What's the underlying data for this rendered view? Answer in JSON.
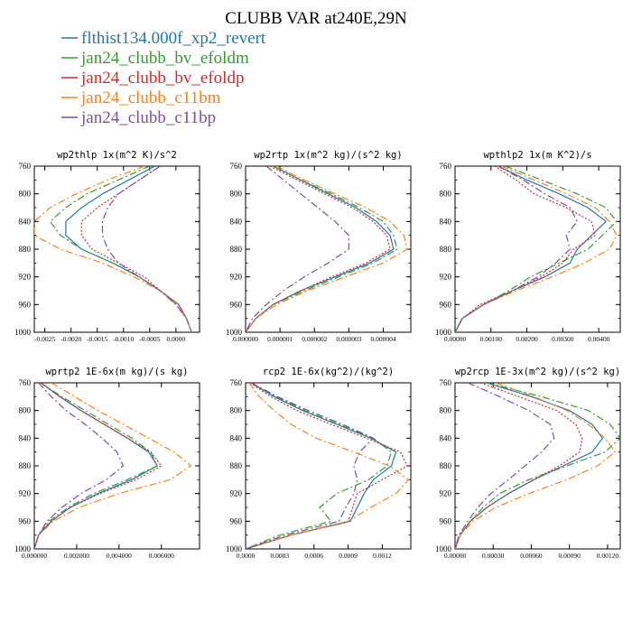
{
  "page_title": "CLUBB VAR at240E,29N",
  "legend": [
    {
      "label": "flthist134.000f_xp2_revert",
      "color": "#1f77b4",
      "dash": ""
    },
    {
      "label": "jan24_clubb_bv_efoldm",
      "color": "#2ca02c",
      "dash": "8,3,2,3"
    },
    {
      "label": "jan24_clubb_bv_efoldp",
      "color": "#d62728",
      "dash": "2,2"
    },
    {
      "label": "jan24_clubb_c11bm",
      "color": "#ff7f0e",
      "dash": "8,3,2,3"
    },
    {
      "label": "jan24_clubb_c11bp",
      "color": "#7b4ea3",
      "dash": "8,3,2,3"
    }
  ],
  "chart_data": [
    {
      "type": "line",
      "title": "wp2thlp  1x(m^2 K)/s^2",
      "ylim": [
        760,
        1000
      ],
      "yticks": [
        "760",
        "800",
        "840",
        "880",
        "920",
        "960",
        "1000"
      ],
      "xlim": [
        -0.0027,
        0.00045
      ],
      "xtick_values": [
        -0.0025,
        -0.002,
        -0.0015,
        -0.001,
        -0.0005,
        0.0
      ],
      "xtick_labels": [
        "-0.0025",
        "-0.0020",
        "-0.0015",
        "-0.0010",
        "-0.0005",
        "0.0000"
      ],
      "y": [
        760,
        780,
        800,
        820,
        840,
        860,
        880,
        900,
        920,
        940,
        960,
        980,
        1000
      ],
      "series": [
        {
          "name": "flthist134.000f_xp2_revert",
          "values": [
            -0.0004,
            -0.0009,
            -0.0014,
            -0.0018,
            -0.0021,
            -0.0021,
            -0.0018,
            -0.0012,
            -0.0007,
            -0.0003,
            5e-05,
            0.0002,
            0.0003
          ]
        },
        {
          "name": "jan24_clubb_bv_efoldm",
          "values": [
            -0.0005,
            -0.0011,
            -0.0017,
            -0.0021,
            -0.0024,
            -0.0022,
            -0.0018,
            -0.0012,
            -0.0007,
            -0.0003,
            5e-05,
            0.0002,
            0.0003
          ]
        },
        {
          "name": "jan24_clubb_bv_efoldp",
          "values": [
            -0.0003,
            -0.0007,
            -0.0011,
            -0.0015,
            -0.0018,
            -0.0018,
            -0.0016,
            -0.0011,
            -0.0006,
            -0.0003,
            5e-05,
            0.0002,
            0.0003
          ]
        },
        {
          "name": "jan24_clubb_c11bm",
          "values": [
            -0.0006,
            -0.0013,
            -0.0019,
            -0.0024,
            -0.0027,
            -0.0027,
            -0.0022,
            -0.0014,
            -0.0008,
            -0.0003,
            0.0,
            0.0002,
            0.0003
          ]
        },
        {
          "name": "jan24_clubb_c11bp",
          "values": [
            -0.0003,
            -0.0007,
            -0.0011,
            -0.0013,
            -0.0014,
            -0.0014,
            -0.0013,
            -0.0011,
            -0.0007,
            -0.0003,
            0.0,
            0.0002,
            0.0003
          ]
        }
      ]
    },
    {
      "type": "line",
      "title": "wp2rtp  1x(m^2 kg)/(s^2 kg)",
      "ylim": [
        760,
        1000
      ],
      "yticks": [
        "760",
        "800",
        "840",
        "880",
        "920",
        "960",
        "1000"
      ],
      "xlim": [
        0.0,
        4.8e-06
      ],
      "xtick_values": [
        0.0,
        1e-06,
        2e-06,
        3e-06,
        4e-06
      ],
      "xtick_labels": [
        "0.000000",
        "0.000001",
        "0.000002",
        "0.000003",
        "0.000004"
      ],
      "y": [
        760,
        780,
        800,
        820,
        840,
        860,
        880,
        900,
        920,
        940,
        960,
        980,
        1000
      ],
      "series": [
        {
          "name": "flthist134.000f_xp2_revert",
          "values": [
            8e-07,
            1.6e-06,
            2.4e-06,
            3.2e-06,
            3.8e-06,
            4.2e-06,
            4.3e-06,
            3.6e-06,
            2.6e-06,
            1.6e-06,
            8e-07,
            3e-07,
            0.0
          ]
        },
        {
          "name": "jan24_clubb_bv_efoldm",
          "values": [
            8e-07,
            1.6e-06,
            2.5e-06,
            3.3e-06,
            4e-06,
            4.3e-06,
            4.4e-06,
            3.7e-06,
            2.7e-06,
            1.7e-06,
            8e-07,
            3e-07,
            0.0
          ]
        },
        {
          "name": "jan24_clubb_bv_efoldp",
          "values": [
            7e-07,
            1.5e-06,
            2.3e-06,
            3.1e-06,
            3.7e-06,
            4.1e-06,
            4.2e-06,
            3.5e-06,
            2.5e-06,
            1.6e-06,
            8e-07,
            3e-07,
            0.0
          ]
        },
        {
          "name": "jan24_clubb_c11bm",
          "values": [
            9e-07,
            1.7e-06,
            2.6e-06,
            3.5e-06,
            4.2e-06,
            4.6e-06,
            4.7e-06,
            4e-06,
            2.9e-06,
            1.8e-06,
            9e-07,
            3e-07,
            0.0
          ]
        },
        {
          "name": "jan24_clubb_c11bp",
          "values": [
            6e-07,
            1.1e-06,
            1.6e-06,
            2.1e-06,
            2.6e-06,
            3e-06,
            3e-06,
            2.4e-06,
            1.7e-06,
            1.1e-06,
            6e-07,
            2e-07,
            0.0
          ]
        }
      ]
    },
    {
      "type": "line",
      "title": "wpthlp2  1x(m K^2)/s",
      "ylim": [
        760,
        1000
      ],
      "yticks": [
        "760",
        "800",
        "840",
        "880",
        "920",
        "960",
        "1000"
      ],
      "xlim": [
        0.0,
        0.0046
      ],
      "xtick_values": [
        0.0,
        0.001,
        0.002,
        0.003,
        0.004
      ],
      "xtick_labels": [
        "0.00000",
        "0.00100",
        "0.00200",
        "0.00300",
        "0.00400"
      ],
      "y": [
        760,
        780,
        800,
        820,
        840,
        860,
        880,
        900,
        920,
        940,
        960,
        980,
        1000
      ],
      "series": [
        {
          "name": "flthist134.000f_xp2_revert",
          "values": [
            0.0012,
            0.002,
            0.0029,
            0.0037,
            0.0042,
            0.0038,
            0.0034,
            0.0032,
            0.0025,
            0.0016,
            0.0008,
            0.0002,
            0.0
          ]
        },
        {
          "name": "jan24_clubb_bv_efoldm",
          "values": [
            0.0014,
            0.0024,
            0.0034,
            0.0042,
            0.0045,
            0.0041,
            0.0037,
            0.0029,
            0.0021,
            0.0015,
            0.0008,
            0.0002,
            0.0
          ]
        },
        {
          "name": "jan24_clubb_bv_efoldp",
          "values": [
            0.0011,
            0.0017,
            0.0022,
            0.0031,
            0.0038,
            0.0039,
            0.0033,
            0.003,
            0.0024,
            0.0016,
            0.0007,
            0.0002,
            0.0
          ]
        },
        {
          "name": "jan24_clubb_c11bm",
          "values": [
            0.0013,
            0.0022,
            0.0031,
            0.0039,
            0.0043,
            0.0045,
            0.0043,
            0.0036,
            0.0027,
            0.0017,
            0.0008,
            0.0002,
            0.0
          ]
        },
        {
          "name": "jan24_clubb_c11bp",
          "values": [
            0.0012,
            0.0019,
            0.0025,
            0.0032,
            0.0034,
            0.0031,
            0.0032,
            0.0028,
            0.0023,
            0.0016,
            0.0008,
            0.0002,
            0.0
          ]
        }
      ]
    },
    {
      "type": "line",
      "title": "wprtp2  1E-6x(m kg)/(s kg)",
      "ylim": [
        760,
        1000
      ],
      "yticks": [
        "760",
        "800",
        "840",
        "880",
        "920",
        "960",
        "1000"
      ],
      "xlim": [
        0.0,
        0.0078
      ],
      "xtick_values": [
        0.0,
        0.002,
        0.004,
        0.006
      ],
      "xtick_labels": [
        "0.000000",
        "0.002000",
        "0.004000",
        "0.006000"
      ],
      "y": [
        760,
        780,
        800,
        820,
        840,
        860,
        880,
        900,
        920,
        940,
        960,
        980,
        1000
      ],
      "series": [
        {
          "name": "flthist134.000f_xp2_revert",
          "values": [
            0.0003,
            0.0012,
            0.0022,
            0.0033,
            0.0044,
            0.0054,
            0.0058,
            0.0046,
            0.003,
            0.0017,
            0.0008,
            0.0002,
            0.0
          ]
        },
        {
          "name": "jan24_clubb_bv_efoldm",
          "values": [
            0.0003,
            0.0013,
            0.0024,
            0.0035,
            0.0046,
            0.0055,
            0.0058,
            0.0044,
            0.0028,
            0.0016,
            0.0007,
            0.0002,
            0.0
          ]
        },
        {
          "name": "jan24_clubb_bv_efoldp",
          "values": [
            0.0003,
            0.0012,
            0.0022,
            0.0033,
            0.0044,
            0.0055,
            0.006,
            0.0048,
            0.0031,
            0.0017,
            0.0008,
            0.0002,
            0.0
          ]
        },
        {
          "name": "jan24_clubb_c11bm",
          "values": [
            0.0008,
            0.0019,
            0.003,
            0.0042,
            0.0054,
            0.0066,
            0.0074,
            0.0064,
            0.004,
            0.0021,
            0.0009,
            0.0002,
            0.0
          ]
        },
        {
          "name": "jan24_clubb_c11bp",
          "values": [
            0.0002,
            0.0008,
            0.0015,
            0.0024,
            0.0032,
            0.0039,
            0.0042,
            0.0034,
            0.0022,
            0.0013,
            0.0006,
            0.0002,
            0.0
          ]
        }
      ]
    },
    {
      "type": "line",
      "title": "rcp2  1E-6x(kg^2)/(kg^2)",
      "ylim": [
        760,
        1000
      ],
      "yticks": [
        "760",
        "800",
        "840",
        "880",
        "920",
        "960",
        "1000"
      ],
      "xlim": [
        0.0,
        0.00145
      ],
      "xtick_values": [
        0.0,
        0.0003,
        0.0006,
        0.0009,
        0.0012
      ],
      "xtick_labels": [
        "0.0000",
        "0.0003",
        "0.0006",
        "0.0009",
        "0.0012"
      ],
      "y": [
        760,
        780,
        800,
        820,
        840,
        860,
        880,
        900,
        920,
        940,
        960,
        980,
        1000
      ],
      "series": [
        {
          "name": "flthist134.000f_xp2_revert",
          "values": [
            5e-05,
            0.00025,
            0.0005,
            0.0008,
            0.0011,
            0.00132,
            0.00128,
            0.00112,
            0.00104,
            0.00098,
            0.00092,
            0.0004,
            0.0
          ]
        },
        {
          "name": "jan24_clubb_bv_efoldm",
          "values": [
            5e-05,
            0.00027,
            0.00052,
            0.00082,
            0.00112,
            0.00128,
            0.00124,
            0.00108,
            0.0008,
            0.00065,
            0.00075,
            0.0003,
            0.0
          ]
        },
        {
          "name": "jan24_clubb_bv_efoldp",
          "values": [
            4e-05,
            0.00022,
            0.00045,
            0.00075,
            0.00106,
            0.00136,
            0.00142,
            0.0012,
            0.00098,
            0.00094,
            0.0009,
            0.0004,
            0.0
          ]
        },
        {
          "name": "jan24_clubb_c11bm",
          "values": [
            3e-05,
            0.00012,
            0.00025,
            0.0004,
            0.00062,
            0.00095,
            0.00126,
            0.00143,
            0.00132,
            0.0011,
            0.0009,
            0.0004,
            0.0
          ]
        },
        {
          "name": "jan24_clubb_c11bp",
          "values": [
            5e-05,
            0.00028,
            0.00055,
            0.00085,
            0.00112,
            0.001,
            0.00095,
            0.00098,
            0.00095,
            0.00088,
            0.00082,
            0.00035,
            0.0
          ]
        }
      ]
    },
    {
      "type": "line",
      "title": "wp2rcp  1E-3x(m^2 kg)/(s^2 kg)",
      "ylim": [
        760,
        1000
      ],
      "yticks": [
        "760",
        "800",
        "840",
        "880",
        "920",
        "960",
        "1000"
      ],
      "xlim": [
        0.0,
        0.0013
      ],
      "xtick_values": [
        0.0,
        0.0003,
        0.0006,
        0.0009,
        0.0012
      ],
      "xtick_labels": [
        "0.00000",
        "0.00030",
        "0.00060",
        "0.00090",
        "0.00120"
      ],
      "y": [
        760,
        780,
        800,
        820,
        840,
        860,
        880,
        900,
        920,
        940,
        960,
        980,
        1000
      ],
      "series": [
        {
          "name": "flthist134.000f_xp2_revert",
          "values": [
            0.00025,
            0.0006,
            0.0009,
            0.00108,
            0.00116,
            0.00108,
            0.00085,
            0.00062,
            0.00042,
            0.00025,
            0.00012,
            4e-05,
            0.0
          ]
        },
        {
          "name": "jan24_clubb_bv_efoldm",
          "values": [
            0.00025,
            0.00068,
            0.00105,
            0.00122,
            0.0013,
            0.00118,
            0.00088,
            0.00058,
            0.00035,
            0.00022,
            0.00012,
            4e-05,
            0.0
          ]
        },
        {
          "name": "jan24_clubb_bv_efoldp",
          "values": [
            0.0002,
            0.0005,
            0.0008,
            0.00095,
            0.001,
            0.00098,
            0.00082,
            0.00062,
            0.00042,
            0.00025,
            0.00012,
            4e-05,
            0.0
          ]
        },
        {
          "name": "jan24_clubb_c11bm",
          "values": [
            0.00032,
            0.00062,
            0.00088,
            0.00105,
            0.00118,
            0.00126,
            0.00112,
            0.00088,
            0.00058,
            0.00032,
            0.00014,
            4e-05,
            0.0
          ]
        },
        {
          "name": "jan24_clubb_c11bp",
          "values": [
            0.0001,
            0.00035,
            0.00058,
            0.00075,
            0.00078,
            0.00068,
            0.00055,
            0.00042,
            0.00028,
            0.00018,
            0.0001,
            3e-05,
            0.0
          ]
        }
      ]
    }
  ]
}
